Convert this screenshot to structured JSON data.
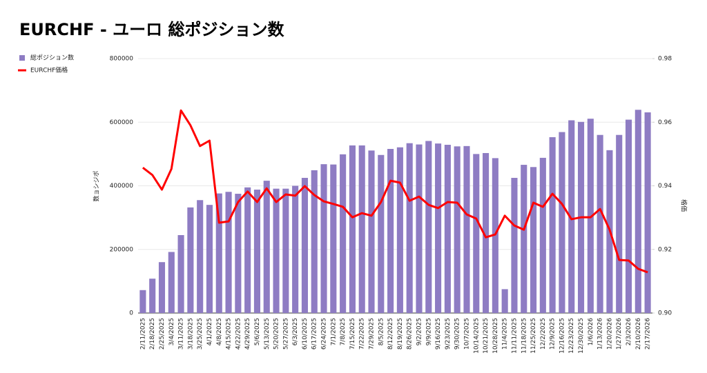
{
  "chart_data": {
    "type": "bar_line",
    "title": "EURCHF - ユーロ 総ポジション数",
    "y_label": "数ョシジポ",
    "y2_label": "格価",
    "categories": [
      "2/11/2025",
      "2/18/2025",
      "2/25/2025",
      "3/4/2025",
      "3/11/2025",
      "3/18/2025",
      "3/25/2025",
      "4/1/2025",
      "4/8/2025",
      "4/15/2025",
      "4/22/2025",
      "4/29/2025",
      "5/6/2025",
      "5/13/2025",
      "5/20/2025",
      "5/27/2025",
      "6/3/2025",
      "6/10/2025",
      "6/17/2025",
      "6/24/2025",
      "7/1/2025",
      "7/8/2025",
      "7/15/2025",
      "7/22/2025",
      "7/29/2025",
      "8/5/2025",
      "8/12/2025",
      "8/19/2025",
      "8/26/2025",
      "9/2/2025",
      "9/9/2025",
      "9/16/2025",
      "9/23/2025",
      "9/30/2025",
      "10/7/2025",
      "10/14/2025",
      "10/21/2025",
      "10/28/2025",
      "11/4/2025",
      "11/11/2025",
      "11/18/2025",
      "11/25/2025",
      "12/2/2025",
      "12/9/2025",
      "12/16/2025",
      "12/23/2025",
      "12/30/2025",
      "1/6/2026",
      "1/13/2026",
      "1/20/2026",
      "1/27/2026",
      "2/3/2026",
      "2/10/2026",
      "2/17/2026"
    ],
    "series": [
      {
        "name": "総ポジション数",
        "type": "bar",
        "color": "#8e7cc3",
        "values": [
          72000,
          108000,
          160000,
          192000,
          245000,
          332000,
          355000,
          340000,
          376000,
          381000,
          375000,
          395000,
          388000,
          416000,
          391000,
          391000,
          400000,
          425000,
          449000,
          468000,
          467000,
          499000,
          527000,
          527000,
          511000,
          497000,
          516000,
          521000,
          534000,
          530000,
          541000,
          533000,
          529000,
          524000,
          525000,
          500000,
          503000,
          487000,
          75000,
          425000,
          466000,
          459000,
          488000,
          553000,
          569000,
          606000,
          601000,
          611000,
          560000,
          512000,
          560000,
          608000,
          639000,
          631000
        ]
      },
      {
        "name": "EURCHF価格",
        "type": "line",
        "axis": "y2",
        "color": "#ff0000",
        "values": [
          0.9457,
          0.9434,
          0.9388,
          0.9453,
          0.9637,
          0.959,
          0.9525,
          0.9542,
          0.9284,
          0.9288,
          0.9349,
          0.9382,
          0.9349,
          0.9392,
          0.9349,
          0.9373,
          0.9369,
          0.9399,
          0.9371,
          0.9351,
          0.9343,
          0.9334,
          0.9301,
          0.9314,
          0.9306,
          0.9349,
          0.9416,
          0.941,
          0.9353,
          0.9366,
          0.934,
          0.933,
          0.9349,
          0.9347,
          0.931,
          0.9297,
          0.9238,
          0.9247,
          0.9306,
          0.9275,
          0.9262,
          0.9347,
          0.9334,
          0.9375,
          0.9343,
          0.9295,
          0.9301,
          0.9301,
          0.9327,
          0.9262,
          0.9167,
          0.9165,
          0.9139,
          0.9128
        ]
      }
    ],
    "ylim": [
      0,
      800000
    ],
    "yticks": [
      0,
      200000,
      400000,
      600000,
      800000
    ],
    "y2lim": [
      0.9,
      0.98
    ],
    "y2ticks": [
      {
        "value": 0.9,
        "label": "0.90"
      },
      {
        "value": 0.92,
        "label": "0.92"
      },
      {
        "value": 0.94,
        "label": "0.94"
      },
      {
        "value": 0.96,
        "label": "0.96"
      },
      {
        "value": 0.98,
        "label": "0.98"
      }
    ],
    "legend": "top-left"
  }
}
